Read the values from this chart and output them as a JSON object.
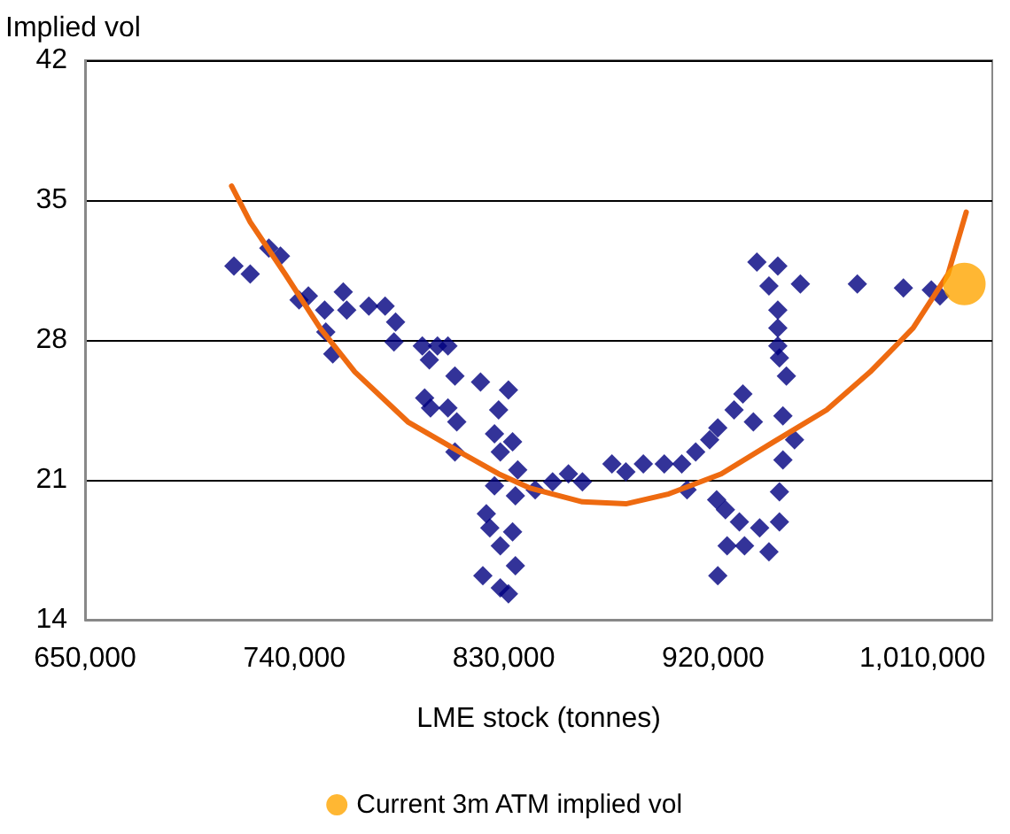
{
  "chart_data": {
    "type": "scatter",
    "xlabel": "LME stock (tonnes)",
    "ylabel": "Implied vol",
    "xlim": [
      650000,
      1040000
    ],
    "xticks": [
      {
        "value": 650000,
        "label": "650,000"
      },
      {
        "value": 740000,
        "label": "740,000"
      },
      {
        "value": 830000,
        "label": "830,000"
      },
      {
        "value": 920000,
        "label": "920,000"
      },
      {
        "value": 1010000,
        "label": "1,010,000"
      }
    ],
    "ylim": [
      14,
      42
    ],
    "yticks": [
      14,
      21,
      28,
      35,
      42
    ],
    "grid": "y",
    "legend": "bottom",
    "series": [
      {
        "color": "#000080",
        "marker": "diamond",
        "x": [
          714000,
          721000,
          729000,
          734000,
          742000,
          746000,
          753000,
          753500,
          756500,
          761000,
          762500,
          772000,
          779000,
          783500,
          782800,
          795000,
          801500,
          806000,
          798000,
          809000,
          820000,
          796000,
          798500,
          806000,
          809800,
          827800,
          809000,
          826000,
          828500,
          826000,
          824000,
          828500,
          821000,
          828500,
          832000,
          833800,
          835000,
          833800,
          835000,
          832000,
          822500,
          836000,
          843500,
          851000,
          857800,
          863800,
          876500,
          882500,
          890000,
          899000,
          906500,
          908800,
          912500,
          918500,
          922000,
          929000,
          932800,
          937300,
          921500,
          925300,
          931300,
          926000,
          922000,
          933500,
          940000,
          944000,
          948500,
          948500,
          950000,
          955000,
          950000,
          938800,
          947800,
          944000,
          947800,
          947800,
          947800,
          948500,
          951500,
          957500,
          982000,
          1001800,
          1013800,
          1017500
        ],
        "values": [
          31.7,
          31.3,
          32.6,
          32.2,
          30.0,
          30.2,
          29.5,
          28.4,
          27.3,
          30.4,
          29.5,
          29.7,
          29.7,
          28.9,
          27.9,
          27.7,
          27.7,
          27.7,
          27.0,
          26.2,
          25.9,
          25.1,
          24.6,
          24.6,
          23.9,
          24.5,
          22.4,
          23.3,
          22.4,
          20.7,
          18.6,
          17.7,
          16.2,
          15.6,
          25.5,
          22.9,
          20.2,
          18.4,
          16.7,
          15.3,
          19.3,
          21.5,
          20.5,
          20.9,
          21.3,
          20.9,
          21.8,
          21.4,
          21.8,
          21.8,
          21.8,
          20.5,
          22.4,
          23.0,
          23.6,
          24.5,
          25.3,
          23.9,
          20.0,
          19.5,
          18.9,
          17.7,
          16.2,
          17.7,
          18.6,
          17.4,
          18.9,
          20.4,
          24.2,
          23.0,
          22.0,
          31.9,
          31.7,
          30.7,
          29.5,
          28.6,
          27.7,
          27.1,
          26.2,
          30.8,
          30.8,
          30.6,
          30.5,
          30.2
        ]
      },
      {
        "type": "line",
        "color": "#ee6a10",
        "marker": "none",
        "line_style": "solid",
        "x": [
          713000,
          721000,
          736000,
          751000,
          766000,
          788800,
          811000,
          827800,
          841000,
          863800,
          882500,
          901000,
          923500,
          946000,
          968800,
          987500,
          1006000,
          1021000,
          1028800
        ],
        "values": [
          35.7,
          33.9,
          31.3,
          28.6,
          26.4,
          23.9,
          22.4,
          21.3,
          20.6,
          19.9,
          19.8,
          20.3,
          21.3,
          22.9,
          24.5,
          26.4,
          28.6,
          31.3,
          34.4
        ]
      },
      {
        "name": "Current 3m ATM implied vol",
        "color": "#ffa500",
        "marker": "circle",
        "x": [
          1028000
        ],
        "values": [
          30.8
        ]
      }
    ]
  }
}
